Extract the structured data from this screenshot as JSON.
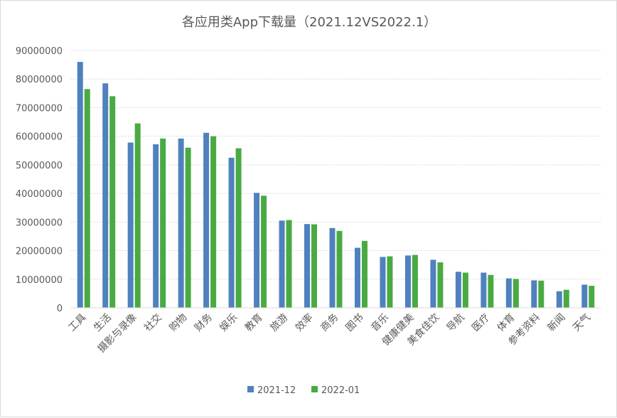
{
  "chart_data": {
    "type": "bar",
    "title": "各应用类App下载量（2021.12VS2022.1）",
    "xlabel": "",
    "ylabel": "",
    "ylim": [
      0,
      90000000
    ],
    "yticks": [
      "0",
      "10000000",
      "20000000",
      "30000000",
      "40000000",
      "50000000",
      "60000000",
      "70000000",
      "80000000",
      "90000000"
    ],
    "grid": true,
    "legend_position": "bottom",
    "categories": [
      "工具",
      "生活",
      "摄影与录像",
      "社交",
      "购物",
      "财务",
      "娱乐",
      "教育",
      "旅游",
      "效率",
      "商务",
      "图书",
      "音乐",
      "健康健美",
      "美食佳饮",
      "导航",
      "医疗",
      "体育",
      "参考资料",
      "新闻",
      "天气"
    ],
    "series": [
      {
        "name": "2021-12",
        "color": "#4f81bd",
        "values": [
          86000000,
          78500000,
          57800000,
          57200000,
          59200000,
          61200000,
          52500000,
          40200000,
          30500000,
          29300000,
          27900000,
          21000000,
          17800000,
          18300000,
          16800000,
          12600000,
          12300000,
          10300000,
          9600000,
          5800000,
          8100000
        ]
      },
      {
        "name": "2022-01",
        "color": "#4aaa42",
        "values": [
          76500000,
          74000000,
          64500000,
          59200000,
          56000000,
          60000000,
          55800000,
          39200000,
          30700000,
          29200000,
          26900000,
          23400000,
          18000000,
          18500000,
          15900000,
          12300000,
          11500000,
          10100000,
          9500000,
          6300000,
          7700000
        ]
      }
    ]
  }
}
